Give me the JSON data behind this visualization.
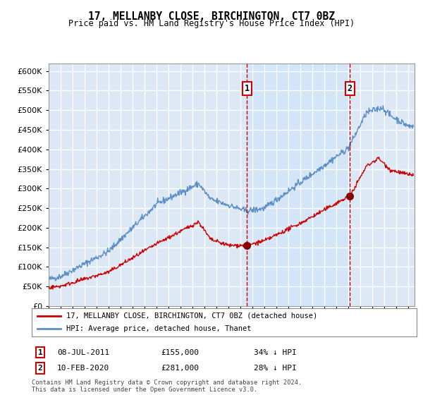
{
  "title": "17, MELLANBY CLOSE, BIRCHINGTON, CT7 0BZ",
  "subtitle": "Price paid vs. HM Land Registry's House Price Index (HPI)",
  "legend_line1": "17, MELLANBY CLOSE, BIRCHINGTON, CT7 0BZ (detached house)",
  "legend_line2": "HPI: Average price, detached house, Thanet",
  "annotation1_date": "08-JUL-2011",
  "annotation1_price": "£155,000",
  "annotation1_hpi": "34% ↓ HPI",
  "annotation1_year": 2011.52,
  "annotation1_value": 155000,
  "annotation2_date": "10-FEB-2020",
  "annotation2_price": "£281,000",
  "annotation2_hpi": "28% ↓ HPI",
  "annotation2_year": 2020.11,
  "annotation2_value": 281000,
  "xmin": 1995,
  "xmax": 2025.5,
  "ymin": 0,
  "ymax": 620000,
  "yticks": [
    0,
    50000,
    100000,
    150000,
    200000,
    250000,
    300000,
    350000,
    400000,
    450000,
    500000,
    550000,
    600000
  ],
  "background_color": "#dde8f5",
  "grid_color": "#ffffff",
  "hpi_line_color": "#5b8ec4",
  "price_line_color": "#cc0000",
  "vline_color": "#cc0000",
  "shade_color": "#d0e4f7",
  "footnote": "Contains HM Land Registry data © Crown copyright and database right 2024.\nThis data is licensed under the Open Government Licence v3.0."
}
